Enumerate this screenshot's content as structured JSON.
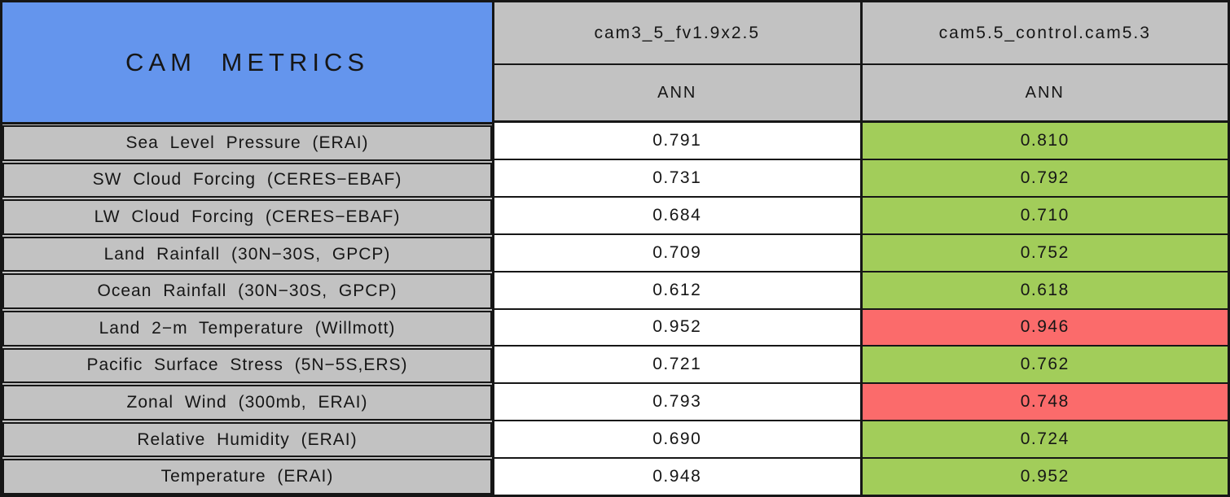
{
  "table": {
    "title": "CAM METRICS",
    "columns": [
      {
        "name": "cam3_5_fv1.9x2.5",
        "season": "ANN"
      },
      {
        "name": "cam5.5_control.cam5.3",
        "season": "ANN"
      }
    ],
    "rows": [
      {
        "label": "Sea Level Pressure (ERAI)",
        "values": [
          "0.791",
          "0.810"
        ],
        "cell_colors": [
          "white",
          "green"
        ]
      },
      {
        "label": "SW Cloud Forcing (CERES−EBAF)",
        "values": [
          "0.731",
          "0.792"
        ],
        "cell_colors": [
          "white",
          "green"
        ]
      },
      {
        "label": "LW Cloud Forcing (CERES−EBAF)",
        "values": [
          "0.684",
          "0.710"
        ],
        "cell_colors": [
          "white",
          "green"
        ]
      },
      {
        "label": "Land Rainfall (30N−30S, GPCP)",
        "values": [
          "0.709",
          "0.752"
        ],
        "cell_colors": [
          "white",
          "green"
        ]
      },
      {
        "label": "Ocean Rainfall (30N−30S, GPCP)",
        "values": [
          "0.612",
          "0.618"
        ],
        "cell_colors": [
          "white",
          "green"
        ]
      },
      {
        "label": "Land 2−m Temperature (Willmott)",
        "values": [
          "0.952",
          "0.946"
        ],
        "cell_colors": [
          "white",
          "red"
        ]
      },
      {
        "label": "Pacific Surface Stress (5N−5S,ERS)",
        "values": [
          "0.721",
          "0.762"
        ],
        "cell_colors": [
          "white",
          "green"
        ]
      },
      {
        "label": "Zonal Wind (300mb, ERAI)",
        "values": [
          "0.793",
          "0.748"
        ],
        "cell_colors": [
          "white",
          "red"
        ]
      },
      {
        "label": "Relative Humidity (ERAI)",
        "values": [
          "0.690",
          "0.724"
        ],
        "cell_colors": [
          "white",
          "green"
        ]
      },
      {
        "label": "Temperature (ERAI)",
        "values": [
          "0.948",
          "0.952"
        ],
        "cell_colors": [
          "white",
          "green"
        ]
      }
    ]
  },
  "colors": {
    "white": "#FFFFFF",
    "green": "#A2CD5A",
    "red": "#FB6B6B",
    "title_blue": "#6495ED",
    "header_gray": "#C2C2C2",
    "border_black": "#161616"
  },
  "chart_data": {
    "type": "table",
    "title": "CAM METRICS",
    "columns": [
      "cam3_5_fv1.9x2.5 (ANN)",
      "cam5.5_control.cam5.3 (ANN)"
    ],
    "categories": [
      "Sea Level Pressure (ERAI)",
      "SW Cloud Forcing (CERES−EBAF)",
      "LW Cloud Forcing (CERES−EBAF)",
      "Land Rainfall (30N−30S, GPCP)",
      "Ocean Rainfall (30N−30S, GPCP)",
      "Land 2−m Temperature (Willmott)",
      "Pacific Surface Stress (5N−5S,ERS)",
      "Zonal Wind (300mb, ERAI)",
      "Relative Humidity (ERAI)",
      "Temperature (ERAI)"
    ],
    "series": [
      {
        "name": "cam3_5_fv1.9x2.5",
        "values": [
          0.791,
          0.731,
          0.684,
          0.709,
          0.612,
          0.952,
          0.721,
          0.793,
          0.69,
          0.948
        ]
      },
      {
        "name": "cam5.5_control.cam5.3",
        "values": [
          0.81,
          0.792,
          0.71,
          0.752,
          0.618,
          0.946,
          0.762,
          0.748,
          0.724,
          0.952
        ]
      }
    ],
    "cell_colors_second_column": [
      "green",
      "green",
      "green",
      "green",
      "green",
      "red",
      "green",
      "red",
      "green",
      "green"
    ]
  }
}
